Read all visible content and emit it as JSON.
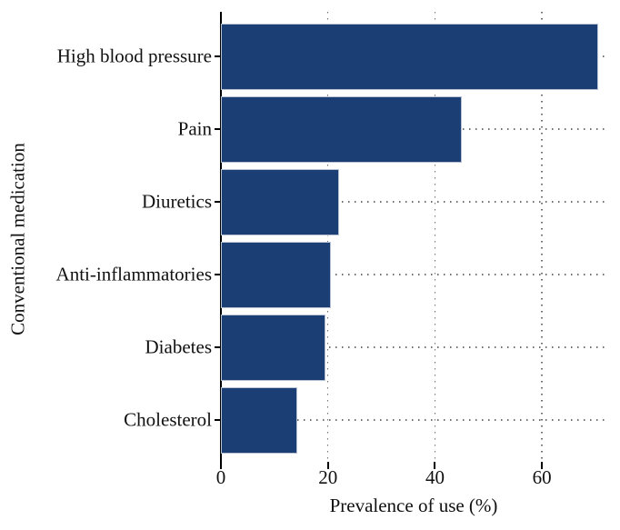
{
  "figure": {
    "background": "#ffffff"
  },
  "chart_data": {
    "type": "bar",
    "orientation": "horizontal",
    "title": "",
    "categories": [
      "High blood pressure",
      "Pain",
      "Diuretics",
      "Anti-inflammatories",
      "Diabetes",
      "Cholesterol"
    ],
    "values": [
      70.5,
      45,
      22,
      20.5,
      19.5,
      14.3
    ],
    "xlabel": "Prevalence of use (%)",
    "ylabel": "Conventional medication",
    "xlim": [
      0,
      72.2
    ],
    "xticks": [
      0,
      20,
      40,
      60
    ],
    "xtick_labels": [
      "0",
      "20",
      "40",
      "60"
    ],
    "legend": "none",
    "grid": {
      "style": "dotted",
      "vertical_at_xticks": true,
      "horizontal_at_category_centers": true
    },
    "colors": {
      "bar_fill": "#1b3e74",
      "bar_edge": "#b7c2d2",
      "grid": "#6f6f6f",
      "axis": "#000000",
      "text": "#111111"
    }
  }
}
